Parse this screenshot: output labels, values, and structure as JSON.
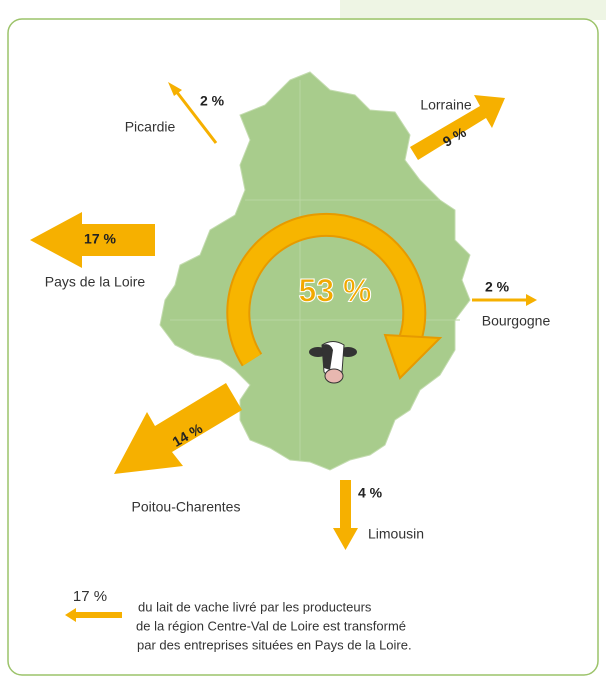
{
  "center": {
    "label": "53 %"
  },
  "flows": [
    {
      "region": "Picardie",
      "label": "2 %"
    },
    {
      "region": "Lorraine",
      "label": "9 %"
    },
    {
      "region": "Pays de la Loire",
      "label": "17 %"
    },
    {
      "region": "Bourgogne",
      "label": "2 %"
    },
    {
      "region": "Poitou-Charentes",
      "label": "14 %"
    },
    {
      "region": "Limousin",
      "label": "4 %"
    }
  ],
  "legend": {
    "label": "17 %",
    "text": [
      "du lait de vache livré par les producteurs",
      "de la région Centre-Val de Loire est transformé",
      "par des entreprises situées en Pays de la Loire."
    ]
  }
}
